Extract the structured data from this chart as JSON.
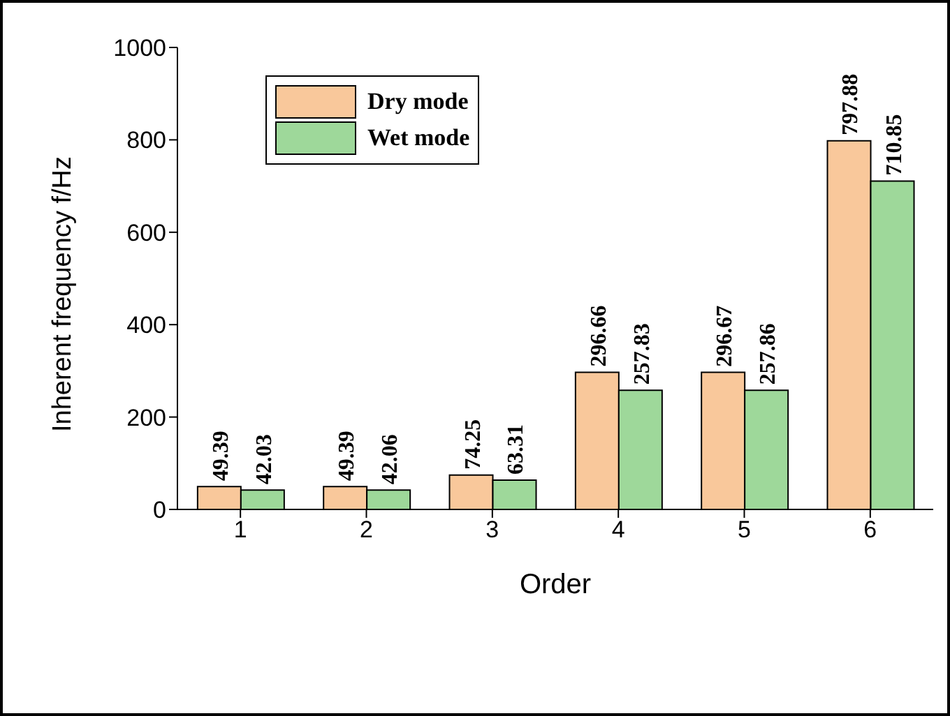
{
  "chart_data": {
    "type": "bar",
    "xlabel": "Order",
    "ylabel": "Inherent frequency f/Hz",
    "categories": [
      "1",
      "2",
      "3",
      "4",
      "5",
      "6"
    ],
    "series": [
      {
        "name": "Dry mode",
        "color": "#f9c89b",
        "values": [
          49.39,
          49.39,
          74.25,
          296.66,
          296.67,
          797.88
        ]
      },
      {
        "name": "Wet mode",
        "color": "#9ed89a",
        "values": [
          42.03,
          42.06,
          63.31,
          257.83,
          257.86,
          710.85
        ]
      }
    ],
    "ylim": [
      0,
      1000
    ],
    "yticks": [
      0,
      200,
      400,
      600,
      800,
      1000
    ],
    "data_labels": true,
    "legend": "top left",
    "grid": false
  }
}
